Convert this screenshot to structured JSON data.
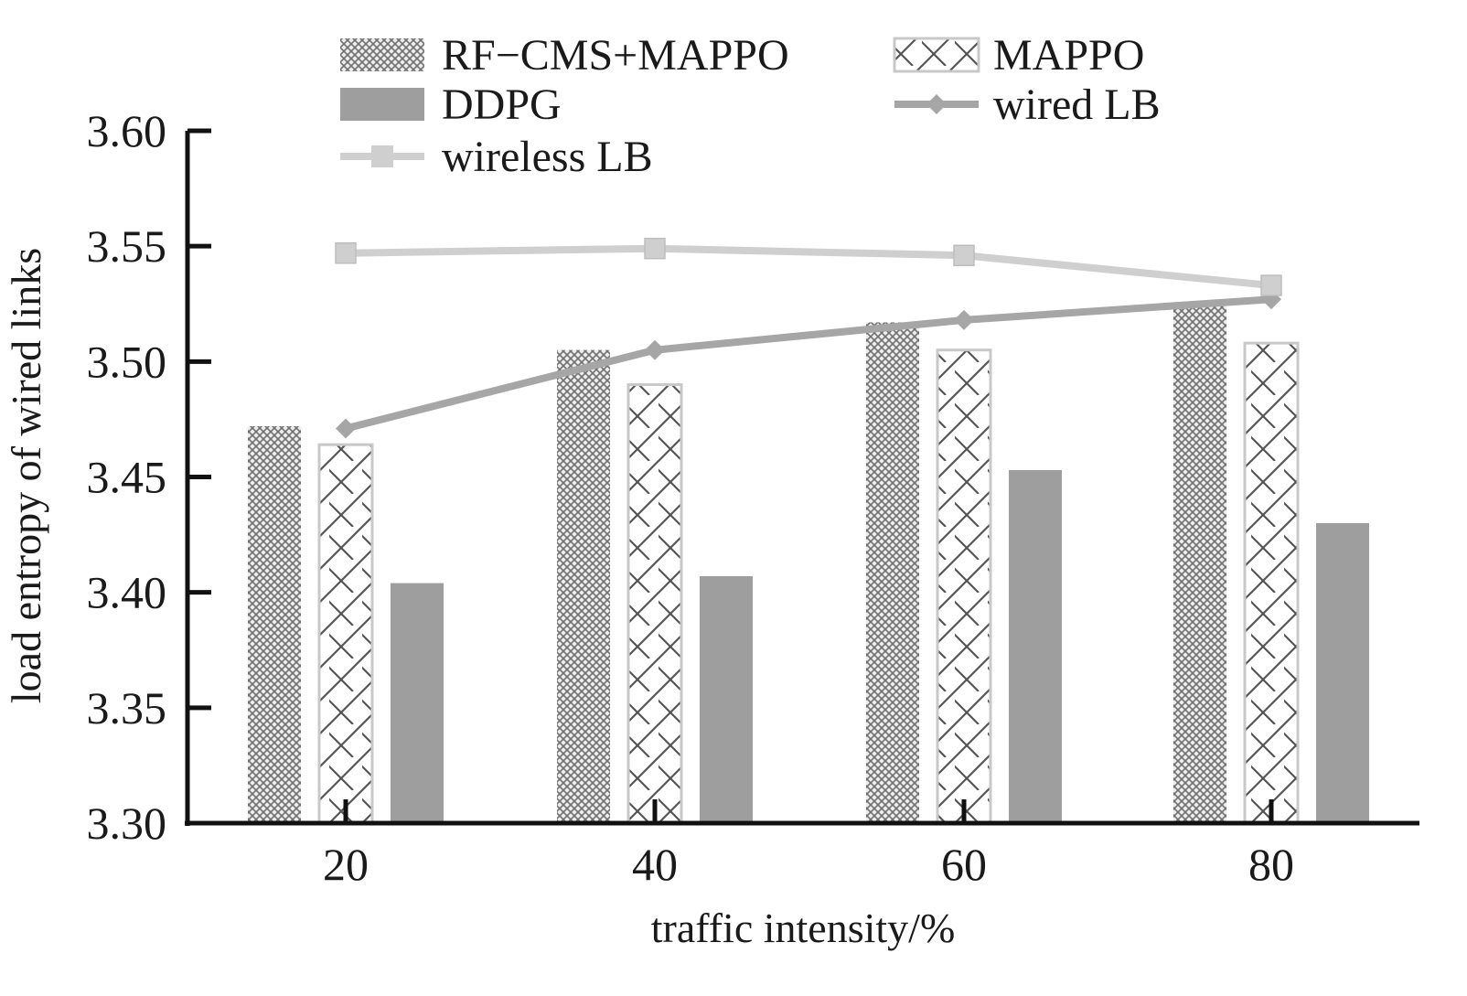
{
  "chart_data": {
    "type": "bar",
    "xlabel": "traffic intensity/%",
    "ylabel": "load entropy of wired links",
    "categories": [
      "20",
      "40",
      "60",
      "80"
    ],
    "ylim": [
      3.3,
      3.6
    ],
    "yticks": [
      "3.30",
      "3.35",
      "3.40",
      "3.45",
      "3.50",
      "3.55",
      "3.60"
    ],
    "grid": false,
    "legend_position": "top",
    "series": [
      {
        "name": "RF−CMS+MAPPO",
        "kind": "bar",
        "pattern": "crosshatch",
        "color": "#9a9a9a",
        "values": [
          3.472,
          3.505,
          3.517,
          3.524
        ]
      },
      {
        "name": "MAPPO",
        "kind": "bar",
        "pattern": "diagonal-zigzag",
        "color": "#a8a8a8",
        "values": [
          3.464,
          3.49,
          3.505,
          3.508
        ]
      },
      {
        "name": "DDPG",
        "kind": "bar",
        "pattern": "solid",
        "color": "#9e9e9e",
        "values": [
          3.404,
          3.407,
          3.453,
          3.43
        ]
      },
      {
        "name": "wired LB",
        "kind": "line",
        "marker": "diamond",
        "color": "#a6a6a6",
        "values": [
          3.471,
          3.505,
          3.518,
          3.527
        ]
      },
      {
        "name": "wireless LB",
        "kind": "line",
        "marker": "square",
        "color": "#cfcfcf",
        "values": [
          3.547,
          3.549,
          3.546,
          3.533
        ]
      }
    ]
  }
}
